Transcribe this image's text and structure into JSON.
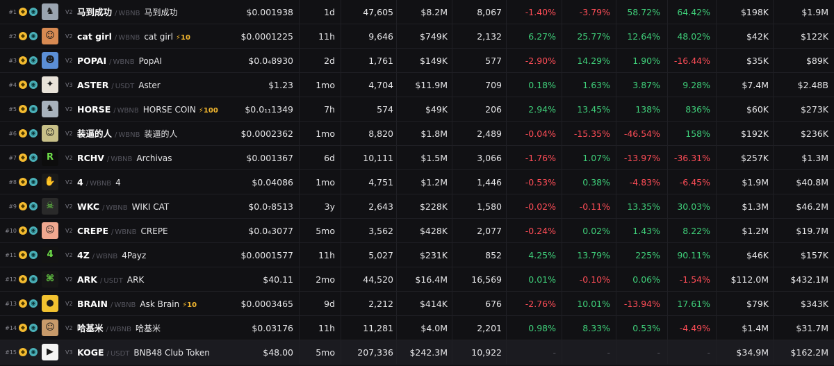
{
  "colors": {
    "positive": "#3fd07a",
    "negative": "#ff4d57",
    "chain": "#f3ba2f",
    "dex": "#4ab0b8"
  },
  "rows": [
    {
      "rank": "#1",
      "ver": "V2",
      "symbol": "马到成功",
      "quote": "WBNB",
      "name": "马到成功",
      "boost": "",
      "price": "$0.001938",
      "age": "1d",
      "txns": "47,605",
      "volume": "$8.2M",
      "makers": "8,067",
      "m5": "-1.40%",
      "h1": "-3.79%",
      "h6": "58.72%",
      "h24": "64.42%",
      "liquidity": "$198K",
      "mcap": "$1.9M",
      "icon": "horse-icon",
      "avatar_bg": "#9aa4b0",
      "avatar_glyph": "♞",
      "highlight": false
    },
    {
      "rank": "#2",
      "ver": "V2",
      "symbol": "cat girl",
      "quote": "WBNB",
      "name": "cat girl",
      "boost": "⚡10",
      "price": "$0.0001225",
      "age": "11h",
      "txns": "9,646",
      "volume": "$749K",
      "makers": "2,132",
      "m5": "6.27%",
      "h1": "25.77%",
      "h6": "12.64%",
      "h24": "48.02%",
      "liquidity": "$42K",
      "mcap": "$122K",
      "icon": "cat-girl-icon",
      "avatar_bg": "#d88a52",
      "avatar_glyph": "☺",
      "highlight": false
    },
    {
      "rank": "#3",
      "ver": "V2",
      "symbol": "POPAI",
      "quote": "WBNB",
      "name": "PopAI",
      "boost": "",
      "price": "$0.0₄8930",
      "age": "2d",
      "txns": "1,761",
      "volume": "$149K",
      "makers": "577",
      "m5": "-2.90%",
      "h1": "14.29%",
      "h6": "1.90%",
      "h24": "-16.44%",
      "liquidity": "$35K",
      "mcap": "$89K",
      "icon": "popai-icon",
      "avatar_bg": "#5b8fd6",
      "avatar_glyph": "☻",
      "highlight": false
    },
    {
      "rank": "#4",
      "ver": "V3",
      "symbol": "ASTER",
      "quote": "USDT",
      "name": "Aster",
      "boost": "",
      "price": "$1.23",
      "age": "1mo",
      "txns": "4,704",
      "volume": "$11.9M",
      "makers": "709",
      "m5": "0.18%",
      "h1": "1.63%",
      "h6": "3.87%",
      "h24": "9.28%",
      "liquidity": "$7.4M",
      "mcap": "$2.48B",
      "icon": "aster-icon",
      "avatar_bg": "#e8e2d8",
      "avatar_glyph": "✦",
      "highlight": false
    },
    {
      "rank": "#5",
      "ver": "V2",
      "symbol": "HORSE",
      "quote": "WBNB",
      "name": "HORSE COIN",
      "boost": "⚡100",
      "price": "$0.0₁₁1349",
      "age": "7h",
      "txns": "574",
      "volume": "$49K",
      "makers": "206",
      "m5": "2.94%",
      "h1": "13.45%",
      "h6": "138%",
      "h24": "836%",
      "liquidity": "$60K",
      "mcap": "$273K",
      "icon": "horse-coin-icon",
      "avatar_bg": "#a8b2bc",
      "avatar_glyph": "♞",
      "highlight": false
    },
    {
      "rank": "#6",
      "ver": "V2",
      "symbol": "装逼的人",
      "quote": "WBNB",
      "name": "装逼的人",
      "boost": "",
      "price": "$0.0002362",
      "age": "1mo",
      "txns": "8,820",
      "volume": "$1.8M",
      "makers": "2,489",
      "m5": "-0.04%",
      "h1": "-15.35%",
      "h6": "-46.54%",
      "h24": "158%",
      "liquidity": "$192K",
      "mcap": "$236K",
      "icon": "character-icon",
      "avatar_bg": "#c8c088",
      "avatar_glyph": "☺",
      "highlight": false
    },
    {
      "rank": "#7",
      "ver": "V2",
      "symbol": "RCHV",
      "quote": "WBNB",
      "name": "Archivas",
      "boost": "",
      "price": "$0.001367",
      "age": "6d",
      "txns": "10,111",
      "volume": "$1.5M",
      "makers": "3,066",
      "m5": "-1.76%",
      "h1": "1.07%",
      "h6": "-13.97%",
      "h24": "-36.31%",
      "liquidity": "$257K",
      "mcap": "$1.3M",
      "icon": "archivas-icon",
      "avatar_bg": "#0d0d0d",
      "avatar_glyph": "R",
      "highlight": false
    },
    {
      "rank": "#8",
      "ver": "V2",
      "symbol": "4",
      "quote": "WBNB",
      "name": "4",
      "boost": "",
      "price": "$0.04086",
      "age": "1mo",
      "txns": "4,751",
      "volume": "$1.2M",
      "makers": "1,446",
      "m5": "-0.53%",
      "h1": "0.38%",
      "h6": "-4.83%",
      "h24": "-6.45%",
      "liquidity": "$1.9M",
      "mcap": "$40.8M",
      "icon": "hand-icon",
      "avatar_bg": "#1a1a1a",
      "avatar_glyph": "✋",
      "highlight": false
    },
    {
      "rank": "#9",
      "ver": "V2",
      "symbol": "WKC",
      "quote": "WBNB",
      "name": "WIKI CAT",
      "boost": "",
      "price": "$0.0₇8513",
      "age": "3y",
      "txns": "2,643",
      "volume": "$228K",
      "makers": "1,580",
      "m5": "-0.02%",
      "h1": "-0.11%",
      "h6": "13.35%",
      "h24": "30.03%",
      "liquidity": "$1.3M",
      "mcap": "$46.2M",
      "icon": "wiki-cat-icon",
      "avatar_bg": "#2a2a2a",
      "avatar_glyph": "☠",
      "highlight": false
    },
    {
      "rank": "#10",
      "ver": "V2",
      "symbol": "CREPE",
      "quote": "WBNB",
      "name": "CREPE",
      "boost": "",
      "price": "$0.0₄3077",
      "age": "5mo",
      "txns": "3,562",
      "volume": "$428K",
      "makers": "2,077",
      "m5": "-0.24%",
      "h1": "0.02%",
      "h6": "1.43%",
      "h24": "8.22%",
      "liquidity": "$1.2M",
      "mcap": "$19.7M",
      "icon": "crepe-icon",
      "avatar_bg": "#f0a890",
      "avatar_glyph": "☺",
      "highlight": false
    },
    {
      "rank": "#11",
      "ver": "V2",
      "symbol": "4Z",
      "quote": "WBNB",
      "name": "4Payz",
      "boost": "",
      "price": "$0.0001577",
      "age": "11h",
      "txns": "5,027",
      "volume": "$231K",
      "makers": "852",
      "m5": "4.25%",
      "h1": "13.79%",
      "h6": "225%",
      "h24": "90.11%",
      "liquidity": "$46K",
      "mcap": "$157K",
      "icon": "four-payz-icon",
      "avatar_bg": "#121212",
      "avatar_glyph": "4",
      "highlight": false
    },
    {
      "rank": "#12",
      "ver": "V2",
      "symbol": "ARK",
      "quote": "USDT",
      "name": "ARK",
      "boost": "",
      "price": "$40.11",
      "age": "2mo",
      "txns": "44,520",
      "volume": "$16.4M",
      "makers": "16,569",
      "m5": "0.01%",
      "h1": "-0.10%",
      "h6": "0.06%",
      "h24": "-1.54%",
      "liquidity": "$112.0M",
      "mcap": "$432.1M",
      "icon": "ark-icon",
      "avatar_bg": "#161616",
      "avatar_glyph": "⌘",
      "highlight": false
    },
    {
      "rank": "#13",
      "ver": "V2",
      "symbol": "BRAIN",
      "quote": "WBNB",
      "name": "Ask Brain",
      "boost": "⚡10",
      "price": "$0.0003465",
      "age": "9d",
      "txns": "2,212",
      "volume": "$414K",
      "makers": "676",
      "m5": "-2.76%",
      "h1": "10.01%",
      "h6": "-13.94%",
      "h24": "17.61%",
      "liquidity": "$79K",
      "mcap": "$343K",
      "icon": "brain-icon",
      "avatar_bg": "#f2c230",
      "avatar_glyph": "●",
      "highlight": false
    },
    {
      "rank": "#14",
      "ver": "V2",
      "symbol": "哈基米",
      "quote": "WBNB",
      "name": "哈基米",
      "boost": "",
      "price": "$0.03176",
      "age": "11h",
      "txns": "11,281",
      "volume": "$4.0M",
      "makers": "2,201",
      "m5": "0.98%",
      "h1": "8.33%",
      "h6": "0.53%",
      "h24": "-4.49%",
      "liquidity": "$1.4M",
      "mcap": "$31.7M",
      "icon": "hachimi-cat-icon",
      "avatar_bg": "#c89a6a",
      "avatar_glyph": "☺",
      "highlight": false
    },
    {
      "rank": "#15",
      "ver": "V3",
      "symbol": "KOGE",
      "quote": "USDT",
      "name": "BNB48 Club Token",
      "boost": "",
      "price": "$48.00",
      "age": "5mo",
      "txns": "207,336",
      "volume": "$242.3M",
      "makers": "10,922",
      "m5": "-",
      "h1": "-",
      "h6": "-",
      "h24": "-",
      "liquidity": "$34.9M",
      "mcap": "$162.2M",
      "icon": "koge-icon",
      "avatar_bg": "#f4f4f4",
      "avatar_glyph": "▶",
      "highlight": true
    }
  ]
}
